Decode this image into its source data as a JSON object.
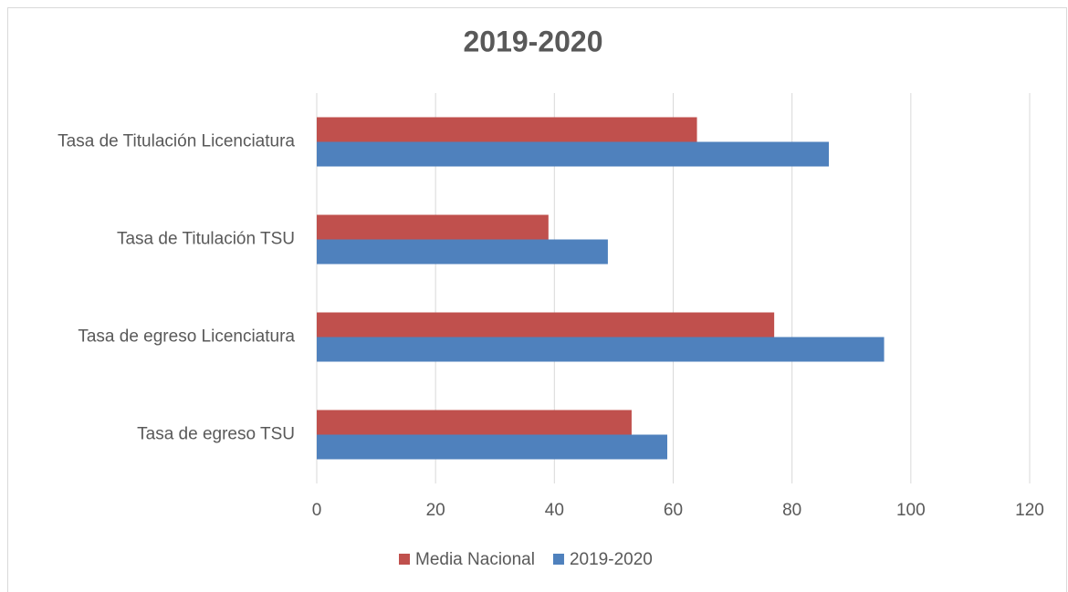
{
  "chart_data": {
    "type": "hbar",
    "title": "2019-2020",
    "categories": [
      "Tasa de Titulación Licenciatura",
      "Tasa de Titulación TSU",
      "Tasa de egreso Licenciatura",
      "Tasa de egreso TSU"
    ],
    "series": [
      {
        "name": "Media Nacional",
        "color": "#c0504d",
        "values": [
          64,
          39,
          77,
          53
        ]
      },
      {
        "name": "2019-2020",
        "color": "#4f81bd",
        "values": [
          86.2,
          49,
          95.5,
          59
        ]
      }
    ],
    "xlim": [
      0,
      120
    ],
    "xticks": [
      0,
      20,
      40,
      60,
      80,
      100,
      120
    ],
    "grid": true,
    "legend": "bottom"
  }
}
